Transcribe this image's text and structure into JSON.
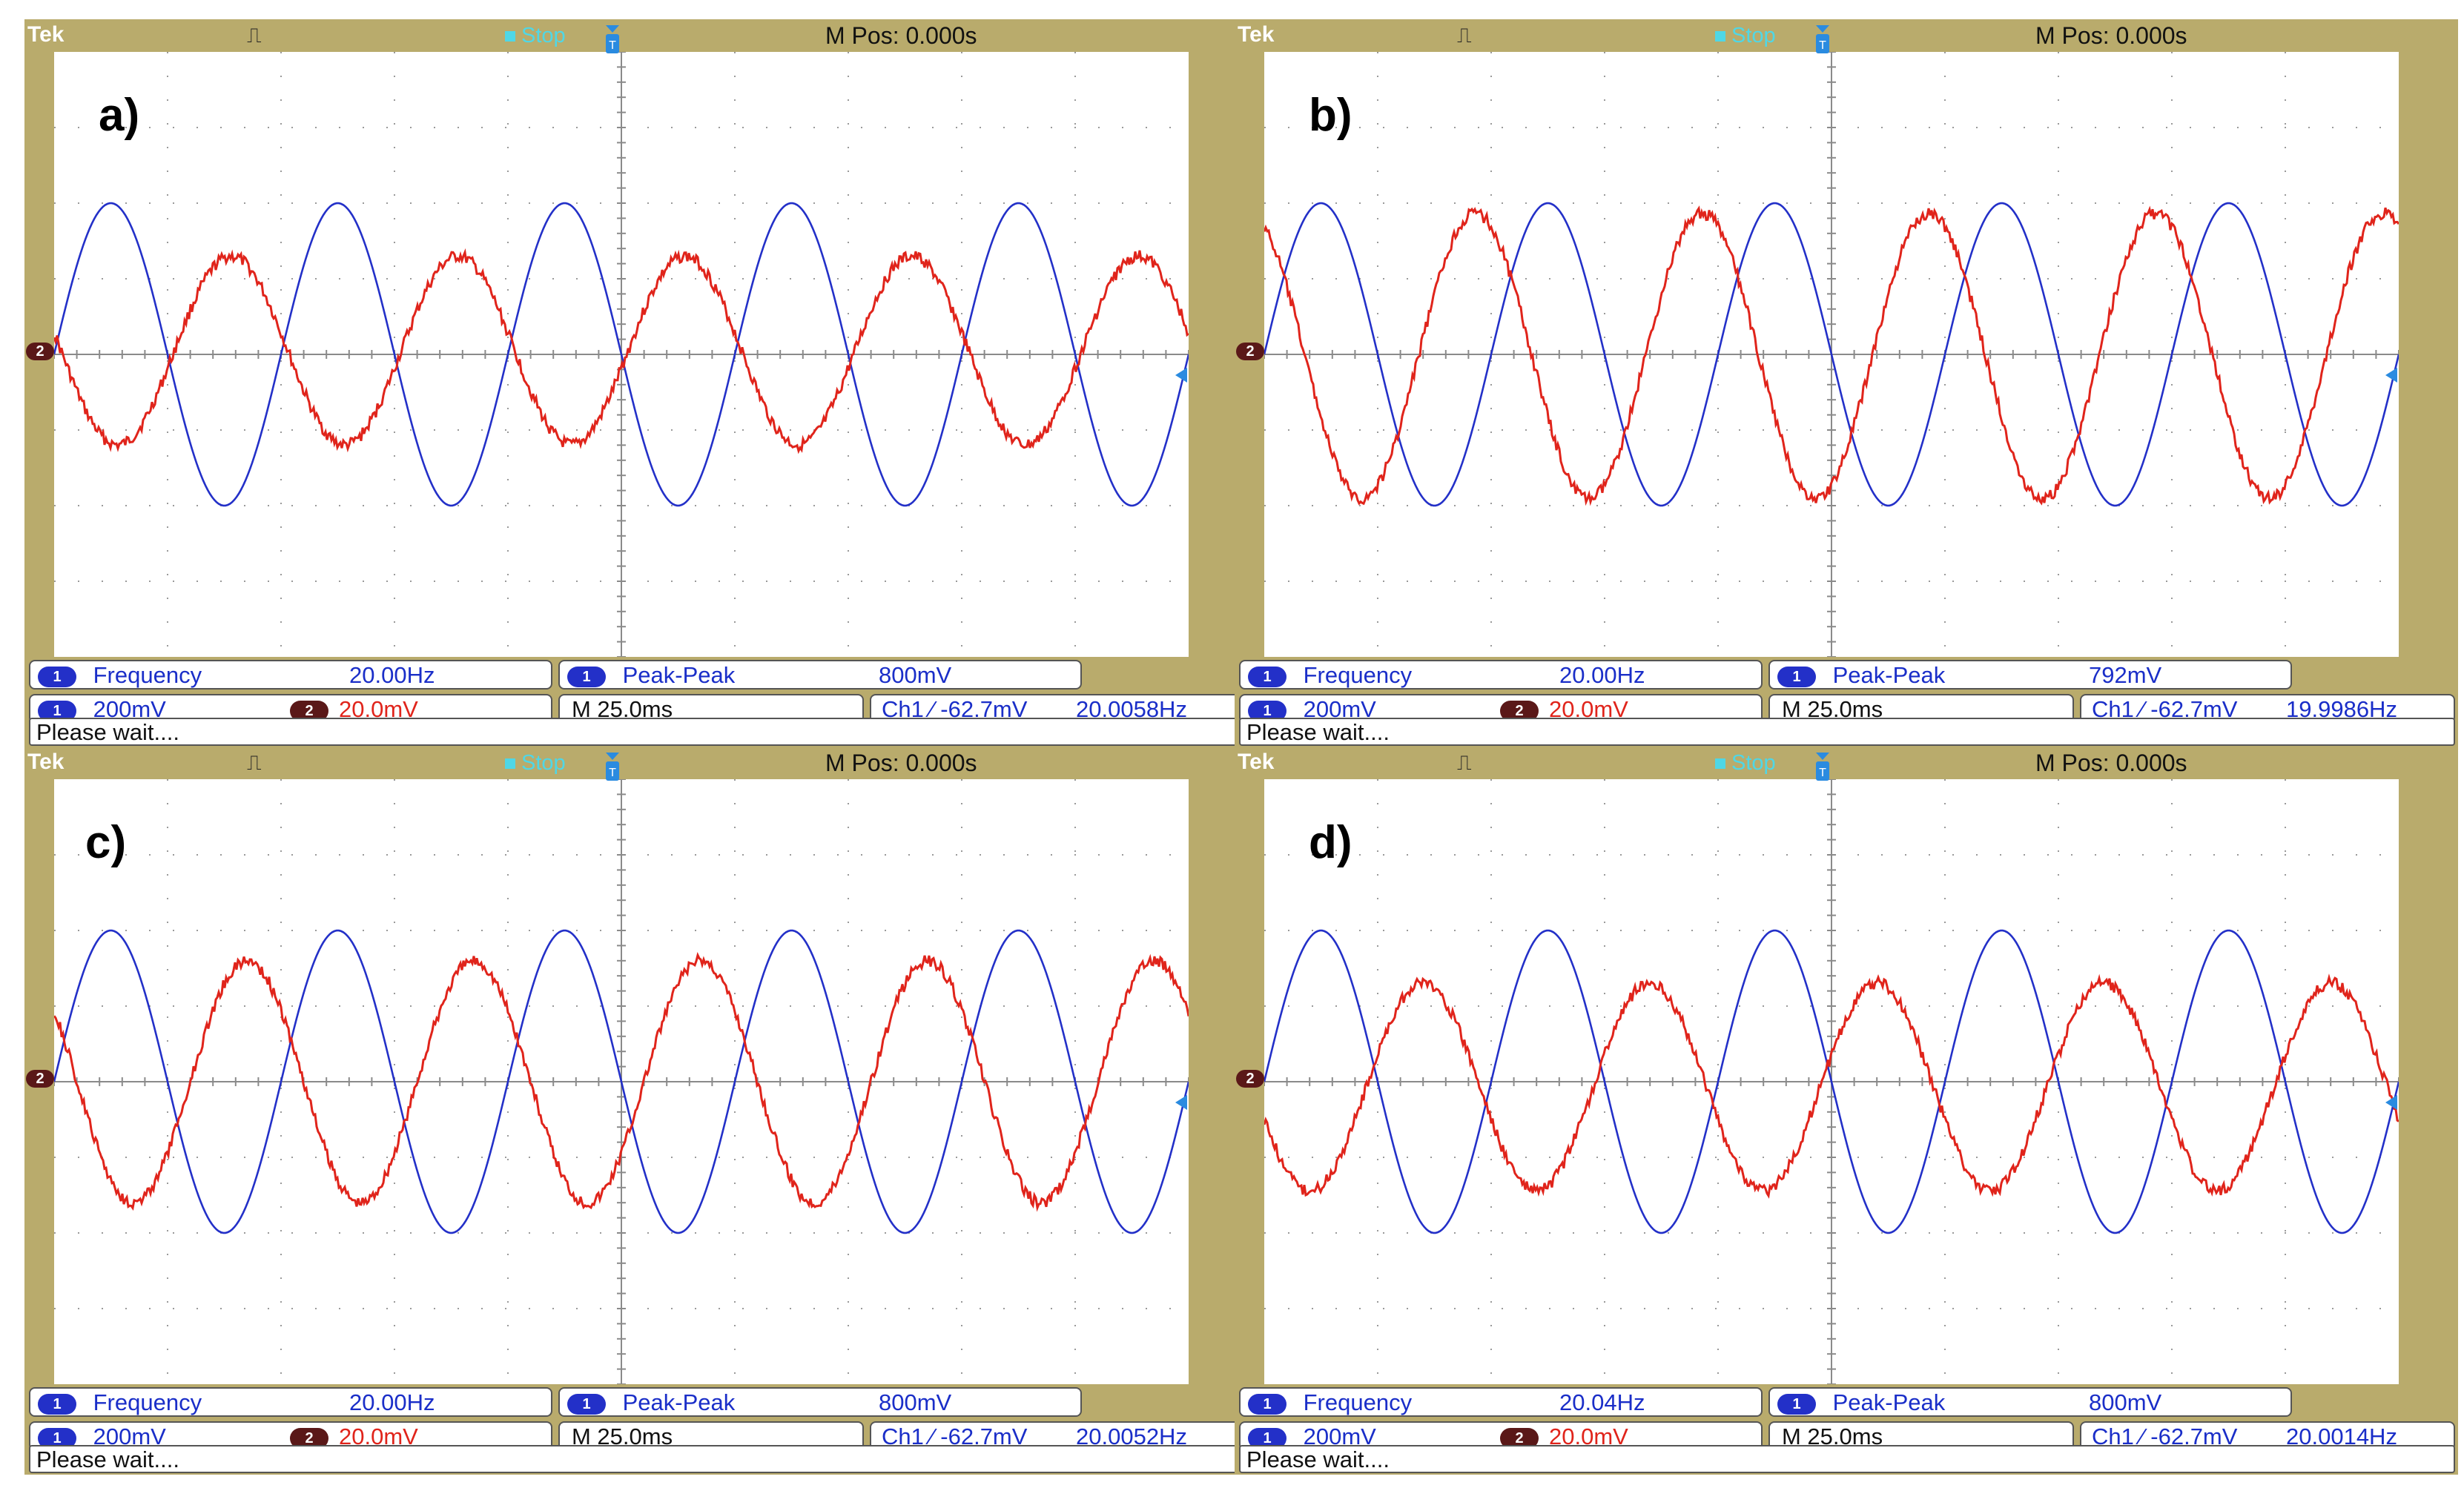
{
  "panels": [
    {
      "label": "a)",
      "tek": "Tek",
      "status": "Stop",
      "mpos": "M Pos: 0.000s",
      "meas1": {
        "name": "Frequency",
        "value": "20.00Hz"
      },
      "meas2": {
        "name": "Peak-Peak",
        "value": "800mV"
      },
      "ch1_scale": "200mV",
      "ch2_scale": "20.0mV",
      "timebase": "M 25.0ms",
      "trigger": "Ch1 ⁄ -62.7mV",
      "trig_freq": "20.0058Hz",
      "message": "Please wait....",
      "ch1_badge": "1",
      "ch2_badge": "2",
      "red_phase": 0.47,
      "red_amp": 0.78,
      "red_offset": 0.05
    },
    {
      "label": "b)",
      "tek": "Tek",
      "status": "Stop",
      "mpos": "M Pos: 0.000s",
      "meas1": {
        "name": "Frequency",
        "value": "20.00Hz"
      },
      "meas2": {
        "name": "Peak-Peak",
        "value": "792mV"
      },
      "ch1_scale": "200mV",
      "ch2_scale": "20.0mV",
      "timebase": "M 25.0ms",
      "trigger": "Ch1 ⁄ -62.7mV",
      "trig_freq": "19.9986Hz",
      "message": "Please wait....",
      "ch1_badge": "1",
      "ch2_badge": "2",
      "red_phase": 0.32,
      "red_amp": 1.18,
      "red_offset": -0.02
    },
    {
      "label": "c)",
      "tek": "Tek",
      "status": "Stop",
      "mpos": "M Pos: 0.000s",
      "meas1": {
        "name": "Frequency",
        "value": "20.00Hz"
      },
      "meas2": {
        "name": "Peak-Peak",
        "value": "800mV"
      },
      "ch1_scale": "200mV",
      "ch2_scale": "20.0mV",
      "timebase": "M 25.0ms",
      "trigger": "Ch1 ⁄ -62.7mV",
      "trig_freq": "20.0052Hz",
      "message": "Please wait....",
      "ch1_badge": "1",
      "ch2_badge": "2",
      "red_phase": 0.4,
      "red_amp": 1.0,
      "red_offset": 0.0
    },
    {
      "label": "d)",
      "tek": "Tek",
      "status": "Stop",
      "mpos": "M Pos: 0.000s",
      "meas1": {
        "name": "Frequency",
        "value": "20.04Hz"
      },
      "meas2": {
        "name": "Peak-Peak",
        "value": "800mV"
      },
      "ch1_scale": "200mV",
      "ch2_scale": "20.0mV",
      "timebase": "M 25.0ms",
      "trigger": "Ch1 ⁄ -62.7mV",
      "trig_freq": "20.0014Hz",
      "message": "Please wait....",
      "ch1_badge": "1",
      "ch2_badge": "2",
      "red_phase": 0.55,
      "red_amp": 0.86,
      "red_offset": -0.07
    }
  ],
  "chart_data": {
    "type": "line",
    "title": "",
    "xlabel": "",
    "ylabel": "",
    "x_divisions": 10,
    "y_divisions": 8,
    "xlim": [
      0,
      10
    ],
    "ylim": [
      -4,
      4
    ],
    "grid": true,
    "series": [
      {
        "color": "#2330c8",
        "cycles": 5.0,
        "amplitude_div": 2.0,
        "offset_div": 0.0
      },
      {
        "color": "#e0241b",
        "cycles": 5.0,
        "amplitude_div": 1.6,
        "offset_div": 0.0
      }
    ]
  },
  "colors": {
    "bezel": "#b9ab6c",
    "screen": "#ffffff",
    "ch1": "#2330c8",
    "ch2": "#e0241b",
    "ch2_badge": "#5a1818",
    "tek": "#ffffff",
    "stop": "#4fd7e6"
  }
}
